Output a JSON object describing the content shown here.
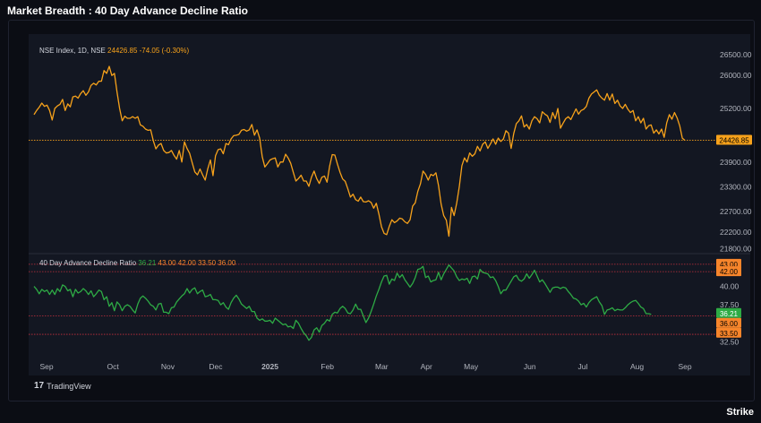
{
  "page": {
    "title": "Market Breadth : 40 Day Advance Decline Ratio"
  },
  "branding": {
    "tradingview": "TradingView",
    "tv_mark": "17",
    "footer": "Strike"
  },
  "colors": {
    "price": "#f7a21b",
    "ratio": "#2eab45",
    "levels": "#f23645",
    "background": "#131722"
  },
  "chart_data": [
    {
      "type": "line",
      "title": "NSE Index, 1D, NSE",
      "legend": {
        "last": "24426.85",
        "change": "-74.05 (-0.30%)"
      },
      "x_axis_labels": [
        "Sep",
        "Oct",
        "Nov",
        "Dec",
        "2025",
        "Feb",
        "Mar",
        "Apr",
        "May",
        "Jun",
        "Jul",
        "Aug",
        "Sep"
      ],
      "y_ticks": [
        "26500.00",
        "26000.00",
        "25200.00",
        "23900.00",
        "23300.00",
        "22700.00",
        "22200.00",
        "21800.00"
      ],
      "ylim": [
        21700,
        26700
      ],
      "last_price_label": "24426.85",
      "series": [
        {
          "values": [
            25050,
            25150,
            25230,
            25330,
            25250,
            25280,
            25150,
            24920,
            25200,
            25260,
            25300,
            25420,
            25150,
            25310,
            25240,
            25480,
            25500,
            25450,
            25560,
            25630,
            25520,
            25600,
            25760,
            25810,
            25770,
            25860,
            25860,
            26120,
            26050,
            26220,
            26000,
            26050,
            25600,
            25200,
            24900,
            25010,
            24960,
            24960,
            25000,
            24960,
            25000,
            24800,
            24770,
            24700,
            24670,
            24680,
            24420,
            24220,
            24310,
            24350,
            24180,
            24120,
            24130,
            24180,
            24060,
            23970,
            24180,
            23900,
            24390,
            24230,
            24110,
            23880,
            23660,
            23590,
            23730,
            23590,
            23460,
            23740,
            23950,
            23570,
            24050,
            24200,
            24220,
            24100,
            24350,
            24320,
            24460,
            24540,
            24550,
            24570,
            24670,
            24690,
            24650,
            24680,
            24810,
            24550,
            24680,
            24480,
            24030,
            23780,
            23860,
            23950,
            23980,
            24000,
            23780,
            23900,
            23900,
            24090,
            24000,
            23870,
            23650,
            23440,
            23500,
            23580,
            23440,
            23440,
            23310,
            23530,
            23680,
            23500,
            23380,
            23530,
            23560,
            23410,
            23800,
            24080,
            24070,
            23850,
            23650,
            23490,
            23430,
            23250,
            23050,
            23120,
            22990,
            22950,
            23050,
            22940,
            22930,
            22960,
            22920,
            22780,
            22900,
            22640,
            22330,
            22170,
            22140,
            22340,
            22500,
            22430,
            22470,
            22540,
            22520,
            22450,
            22410,
            22500,
            22830,
            22910,
            23190,
            23370,
            23680,
            23600,
            23460,
            23600,
            23570,
            23640,
            23330,
            22880,
            22600,
            22490,
            22100,
            22800,
            22600,
            22900,
            23300,
            23810,
            24000,
            23900,
            24120,
            24040,
            24100,
            24280,
            24170,
            24330,
            24390,
            24230,
            24340,
            24460,
            24330,
            24480,
            24400,
            24460,
            24660,
            24600,
            24230,
            24590,
            24830,
            24900,
            25020,
            24750,
            24810,
            24700,
            24900,
            25000,
            24950,
            24850,
            25120,
            25060,
            25020,
            24860,
            25100,
            24950,
            25200,
            24720,
            24840,
            24950,
            25000,
            24930,
            25060,
            25190,
            25060,
            25150,
            25180,
            25250,
            25450,
            25550,
            25600,
            25650,
            25520,
            25450,
            25400,
            25560,
            25400,
            25550,
            25320,
            25400,
            25260,
            25200,
            25300,
            25180,
            25100,
            25150,
            24900,
            25000,
            24850,
            24960,
            24700,
            24780,
            24800,
            24600,
            24680,
            24580,
            24700,
            24500,
            24850,
            25050,
            24940,
            25100,
            24970,
            24780,
            24480,
            24427
          ]
        }
      ]
    },
    {
      "type": "line",
      "title": "40 Day Advance Decline Ratio",
      "legend": [
        "36.21",
        "43.00",
        "42.00",
        "33.50",
        "36.00"
      ],
      "y_ticks": [
        "40.00",
        "37.50",
        "32.50"
      ],
      "ylim": [
        31.2,
        44.2
      ],
      "levels": [
        43.0,
        42.0,
        36.0,
        33.5
      ],
      "level_labels": [
        "43.00",
        "42.00",
        "36.00",
        "33.50"
      ],
      "last_value_label": "36.21",
      "series": [
        {
          "values": [
            40.0,
            39.6,
            39.0,
            39.6,
            39.3,
            39.5,
            38.9,
            39.5,
            38.9,
            39.7,
            39.3,
            40.2,
            40.0,
            39.4,
            39.6,
            38.6,
            39.6,
            39.1,
            39.3,
            39.7,
            39.4,
            38.9,
            39.4,
            38.6,
            39.0,
            39.5,
            39.3,
            38.2,
            38.6,
            37.3,
            37.8,
            36.7,
            37.9,
            37.5,
            36.7,
            37.3,
            37.5,
            37.3,
            36.8,
            36.4,
            37.6,
            38.4,
            38.7,
            38.4,
            38.0,
            37.5,
            37.3,
            36.8,
            37.6,
            37.7,
            36.5,
            36.5,
            36.3,
            37.1,
            37.2,
            37.9,
            38.3,
            38.7,
            39.0,
            39.7,
            39.1,
            39.6,
            39.8,
            39.0,
            39.3,
            39.5,
            38.6,
            38.7,
            38.9,
            38.2,
            38.2,
            38.1,
            37.5,
            37.8,
            37.2,
            36.9,
            37.8,
            38.4,
            38.8,
            38.3,
            37.6,
            37.3,
            37.0,
            37.3,
            36.6,
            36.6,
            35.7,
            35.4,
            35.6,
            35.3,
            35.3,
            35.4,
            35.0,
            35.7,
            35.4,
            35.1,
            34.8,
            34.9,
            34.5,
            34.6,
            34.3,
            35.4,
            35.0,
            34.3,
            33.7,
            33.3,
            32.7,
            33.1,
            34.1,
            34.4,
            33.8,
            34.7,
            35.0,
            35.5,
            35.3,
            36.2,
            36.5,
            36.4,
            37.0,
            37.3,
            37.0,
            36.4,
            36.3,
            36.8,
            37.6,
            36.9,
            36.9,
            36.0,
            35.1,
            35.7,
            36.6,
            37.6,
            38.7,
            39.6,
            40.6,
            41.4,
            41.5,
            40.3,
            41.0,
            40.8,
            41.8,
            41.2,
            41.6,
            40.9,
            40.4,
            39.9,
            40.4,
            41.2,
            42.3,
            42.4,
            42.7,
            41.2,
            41.4,
            40.6,
            40.8,
            40.9,
            41.9,
            40.9,
            41.7,
            42.3,
            42.9,
            42.5,
            42.1,
            41.3,
            40.8,
            41.0,
            40.9,
            41.1,
            40.4,
            41.3,
            41.4,
            41.0,
            42.3,
            41.9,
            41.8,
            41.7,
            41.2,
            41.3,
            40.8,
            40.0,
            39.0,
            39.5,
            39.5,
            40.1,
            40.7,
            41.3,
            41.5,
            40.9,
            40.7,
            41.0,
            41.7,
            41.1,
            41.6,
            42.2,
            41.4,
            40.6,
            40.9,
            40.4,
            39.8,
            39.2,
            39.8,
            39.9,
            39.9,
            39.7,
            39.9,
            39.8,
            39.3,
            38.9,
            38.4,
            38.3,
            38.0,
            37.5,
            37.7,
            37.2,
            37.8,
            38.2,
            38.4,
            38.6,
            37.9,
            37.4,
            36.2,
            36.8,
            36.9,
            37.1,
            36.7,
            36.9,
            36.8,
            36.8,
            37.1,
            37.5,
            37.8,
            38.0,
            38.1,
            37.7,
            37.2,
            37.0,
            36.3,
            36.3,
            36.21
          ]
        }
      ]
    }
  ]
}
